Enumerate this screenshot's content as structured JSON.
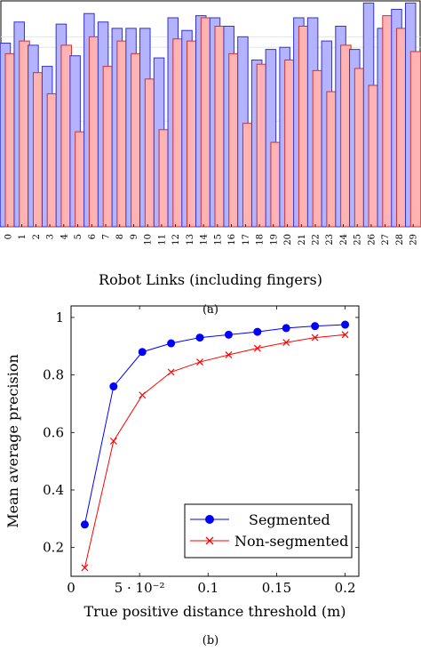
{
  "chart_data": [
    {
      "type": "bar",
      "panel_label": "(a)",
      "xlabel": "Robot Links (including fingers)",
      "ylabel": "",
      "title": "",
      "categories": [
        "0",
        "1",
        "2",
        "3",
        "4",
        "5",
        "6",
        "7",
        "8",
        "9",
        "10",
        "11",
        "12",
        "13",
        "14",
        "15",
        "16",
        "17",
        "18",
        "19",
        "20",
        "21",
        "22",
        "23",
        "24",
        "25",
        "26",
        "27",
        "28",
        "29"
      ],
      "series": [
        {
          "color": "#b3b3ff",
          "stroke": "#3333cc",
          "values": [
            0.87,
            0.97,
            0.86,
            0.76,
            0.96,
            0.81,
            1.01,
            0.97,
            0.94,
            0.94,
            0.94,
            0.8,
            0.99,
            0.93,
            1.0,
            0.99,
            0.95,
            0.9,
            0.79,
            0.84,
            0.85,
            0.99,
            0.99,
            0.88,
            0.95,
            0.84,
            1.06,
            0.94,
            1.03,
            1.06
          ]
        },
        {
          "color": "#ffb3b3",
          "stroke": "#cc3333",
          "values": [
            0.82,
            0.88,
            0.73,
            0.63,
            0.86,
            0.45,
            0.9,
            0.76,
            0.88,
            0.82,
            0.7,
            0.46,
            0.89,
            0.88,
            0.99,
            0.95,
            0.82,
            0.49,
            0.77,
            0.4,
            0.79,
            0.95,
            0.74,
            0.64,
            0.86,
            0.75,
            0.67,
            1.0,
            0.94,
            0.83
          ]
        }
      ],
      "ylim": [
        0,
        1.07
      ]
    },
    {
      "type": "line",
      "panel_label": "(b)",
      "xlabel": "True positive distance threshold (m)",
      "ylabel": "Mean average precision",
      "xlim": [
        0,
        0.21
      ],
      "ylim": [
        0.1,
        1.04
      ],
      "xticks": [
        {
          "v": 0,
          "label": "0"
        },
        {
          "v": 0.05,
          "label": "5 · 10⁻²"
        },
        {
          "v": 0.1,
          "label": "0.1"
        },
        {
          "v": 0.15,
          "label": "0.15"
        },
        {
          "v": 0.2,
          "label": "0.2"
        }
      ],
      "yticks": [
        {
          "v": 0.2,
          "label": "0.2"
        },
        {
          "v": 0.4,
          "label": "0.4"
        },
        {
          "v": 0.6,
          "label": "0.6"
        },
        {
          "v": 0.8,
          "label": "0.8"
        },
        {
          "v": 1.0,
          "label": "1"
        }
      ],
      "legend": "bottom-right",
      "x": [
        0.01,
        0.031,
        0.052,
        0.073,
        0.094,
        0.115,
        0.136,
        0.157,
        0.178,
        0.2
      ],
      "series": [
        {
          "name": "Segmented",
          "color": "#0000ff",
          "marker": "circle",
          "values": [
            0.28,
            0.76,
            0.88,
            0.91,
            0.93,
            0.94,
            0.95,
            0.963,
            0.97,
            0.975
          ]
        },
        {
          "name": "Non-segmented",
          "color": "#ff0000",
          "marker": "x",
          "values": [
            0.13,
            0.57,
            0.73,
            0.81,
            0.845,
            0.87,
            0.893,
            0.913,
            0.93,
            0.94
          ]
        }
      ]
    }
  ]
}
